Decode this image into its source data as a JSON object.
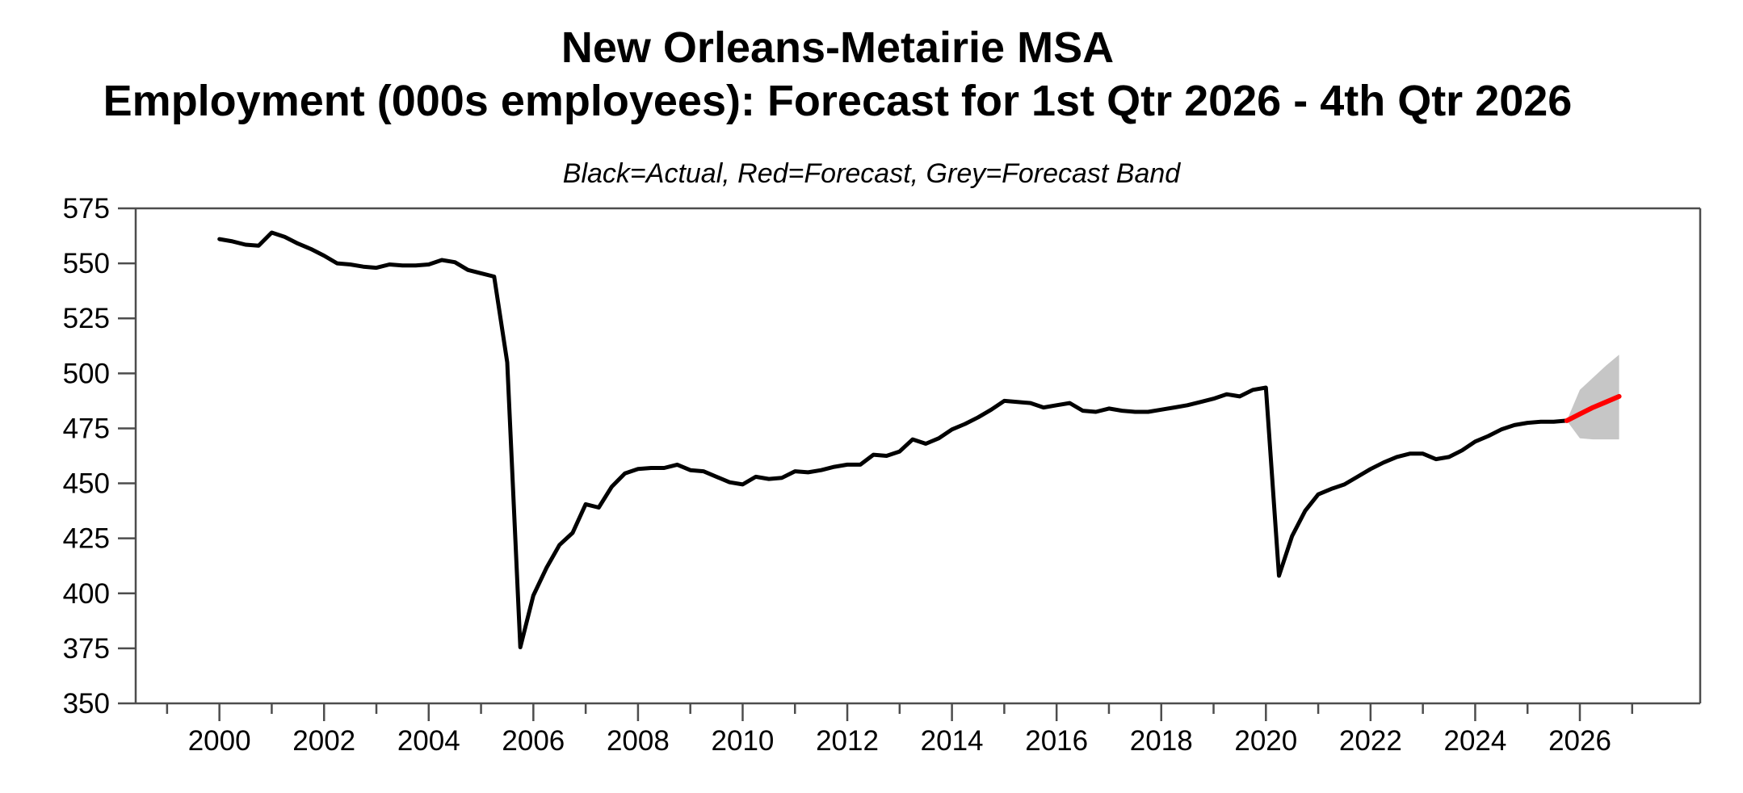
{
  "title": {
    "line1": "New Orleans-Metairie MSA",
    "line2": "Employment (000s employees): Forecast for 1st Qtr 2026 - 4th Qtr 2026"
  },
  "subtitle": "Black=Actual, Red=Forecast, Grey=Forecast Band",
  "colors": {
    "actual": "#000000",
    "forecast": "#ff0000",
    "band": "#c6c6c6",
    "axis": "#4d4d4d",
    "background": "#ffffff"
  },
  "chart_data": {
    "type": "line",
    "title": "New Orleans-Metairie MSA — Employment (000s employees): Forecast for 1st Qtr 2026 - 4th Qtr 2026",
    "legend_note": "Black=Actual, Red=Forecast, Grey=Forecast Band",
    "xlabel": "",
    "ylabel": "Employment (000s employees)",
    "x_axis": {
      "min": 1998.4,
      "max": 2028.3,
      "major_ticks": [
        2000,
        2002,
        2004,
        2006,
        2008,
        2010,
        2012,
        2014,
        2016,
        2018,
        2020,
        2022,
        2024,
        2026
      ],
      "minor_ticks": [
        1999,
        2001,
        2003,
        2005,
        2007,
        2009,
        2011,
        2013,
        2015,
        2017,
        2019,
        2021,
        2023,
        2025,
        2027
      ],
      "grid": false
    },
    "y_axis": {
      "min": 350,
      "max": 575,
      "ticks": [
        350,
        375,
        400,
        425,
        450,
        475,
        500,
        525,
        550,
        575
      ],
      "grid": false
    },
    "frequency": "quarterly",
    "series": [
      {
        "name": "Actual",
        "color": "#000000",
        "points": [
          [
            2000.0,
            561
          ],
          [
            2000.25,
            560
          ],
          [
            2000.5,
            558.5
          ],
          [
            2000.75,
            558
          ],
          [
            2001.0,
            564
          ],
          [
            2001.25,
            562
          ],
          [
            2001.5,
            559
          ],
          [
            2001.75,
            556.5
          ],
          [
            2002.0,
            553.5
          ],
          [
            2002.25,
            550
          ],
          [
            2002.5,
            549.5
          ],
          [
            2002.75,
            548.5
          ],
          [
            2003.0,
            548
          ],
          [
            2003.25,
            549.5
          ],
          [
            2003.5,
            549
          ],
          [
            2003.75,
            549
          ],
          [
            2004.0,
            549.5
          ],
          [
            2004.25,
            551.5
          ],
          [
            2004.5,
            550.5
          ],
          [
            2004.75,
            547
          ],
          [
            2005.0,
            545.5
          ],
          [
            2005.25,
            544
          ],
          [
            2005.5,
            505
          ],
          [
            2005.75,
            375.5
          ],
          [
            2006.0,
            399
          ],
          [
            2006.25,
            411.5
          ],
          [
            2006.5,
            422
          ],
          [
            2006.75,
            427.5
          ],
          [
            2007.0,
            440.5
          ],
          [
            2007.25,
            439
          ],
          [
            2007.5,
            448.5
          ],
          [
            2007.75,
            454.5
          ],
          [
            2008.0,
            456.5
          ],
          [
            2008.25,
            457
          ],
          [
            2008.5,
            457
          ],
          [
            2008.75,
            458.5
          ],
          [
            2009.0,
            456
          ],
          [
            2009.25,
            455.5
          ],
          [
            2009.5,
            453
          ],
          [
            2009.75,
            450.5
          ],
          [
            2010.0,
            449.5
          ],
          [
            2010.25,
            453
          ],
          [
            2010.5,
            452
          ],
          [
            2010.75,
            452.5
          ],
          [
            2011.0,
            455.5
          ],
          [
            2011.25,
            455
          ],
          [
            2011.5,
            456
          ],
          [
            2011.75,
            457.5
          ],
          [
            2012.0,
            458.5
          ],
          [
            2012.25,
            458.5
          ],
          [
            2012.5,
            463
          ],
          [
            2012.75,
            462.5
          ],
          [
            2013.0,
            464.5
          ],
          [
            2013.25,
            470
          ],
          [
            2013.5,
            468
          ],
          [
            2013.75,
            470.5
          ],
          [
            2014.0,
            474.5
          ],
          [
            2014.25,
            477
          ],
          [
            2014.5,
            480
          ],
          [
            2014.75,
            483.5
          ],
          [
            2015.0,
            487.5
          ],
          [
            2015.25,
            487
          ],
          [
            2015.5,
            486.5
          ],
          [
            2015.75,
            484.5
          ],
          [
            2016.0,
            485.5
          ],
          [
            2016.25,
            486.5
          ],
          [
            2016.5,
            483
          ],
          [
            2016.75,
            482.5
          ],
          [
            2017.0,
            484
          ],
          [
            2017.25,
            483
          ],
          [
            2017.5,
            482.5
          ],
          [
            2017.75,
            482.5
          ],
          [
            2018.0,
            483.5
          ],
          [
            2018.25,
            484.5
          ],
          [
            2018.5,
            485.5
          ],
          [
            2018.75,
            487
          ],
          [
            2019.0,
            488.5
          ],
          [
            2019.25,
            490.5
          ],
          [
            2019.5,
            489.5
          ],
          [
            2019.75,
            492.5
          ],
          [
            2020.0,
            493.5
          ],
          [
            2020.25,
            408
          ],
          [
            2020.5,
            426
          ],
          [
            2020.75,
            437.5
          ],
          [
            2021.0,
            445
          ],
          [
            2021.25,
            447.5
          ],
          [
            2021.5,
            449.5
          ],
          [
            2021.75,
            453
          ],
          [
            2022.0,
            456.5
          ],
          [
            2022.25,
            459.5
          ],
          [
            2022.5,
            462
          ],
          [
            2022.75,
            463.5
          ],
          [
            2023.0,
            463.5
          ],
          [
            2023.25,
            461
          ],
          [
            2023.5,
            462
          ],
          [
            2023.75,
            465
          ],
          [
            2024.0,
            469
          ],
          [
            2024.25,
            471.5
          ],
          [
            2024.5,
            474.5
          ],
          [
            2024.75,
            476.5
          ],
          [
            2025.0,
            477.5
          ],
          [
            2025.25,
            478
          ],
          [
            2025.5,
            478
          ],
          [
            2025.75,
            478.5
          ]
        ]
      },
      {
        "name": "Forecast",
        "color": "#ff0000",
        "points": [
          [
            2025.75,
            478.5
          ],
          [
            2026.0,
            481.5
          ],
          [
            2026.25,
            484.5
          ],
          [
            2026.5,
            487
          ],
          [
            2026.75,
            489.5
          ]
        ]
      },
      {
        "name": "Forecast Band",
        "color": "#c6c6c6",
        "upper": [
          [
            2025.75,
            478.5
          ],
          [
            2026.0,
            492.5
          ],
          [
            2026.25,
            498
          ],
          [
            2026.5,
            503.5
          ],
          [
            2026.75,
            508.5
          ]
        ],
        "lower": [
          [
            2025.75,
            478.5
          ],
          [
            2026.0,
            470.5
          ],
          [
            2026.25,
            470
          ],
          [
            2026.5,
            470
          ],
          [
            2026.75,
            470
          ]
        ]
      }
    ]
  }
}
